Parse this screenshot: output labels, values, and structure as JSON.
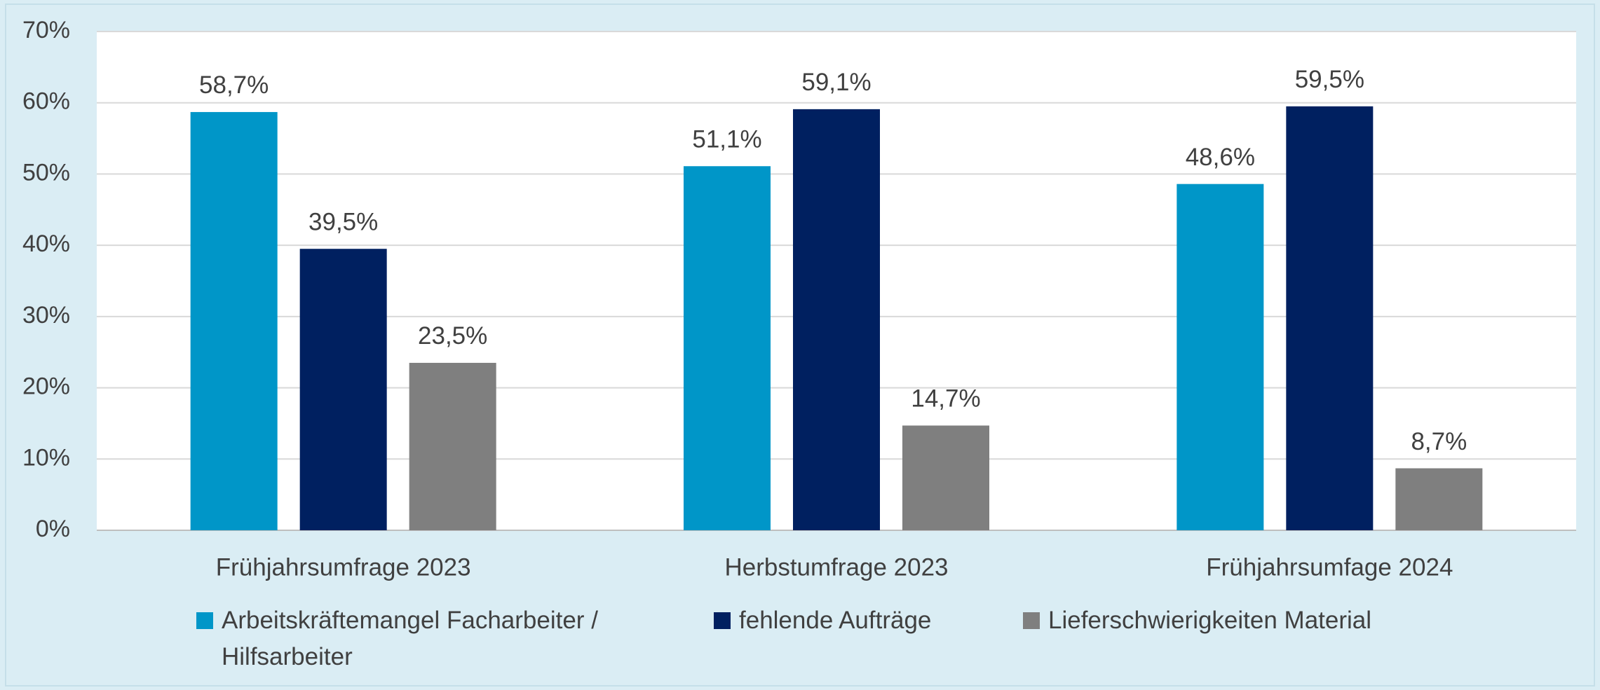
{
  "chart_data": {
    "type": "bar",
    "categories": [
      "Frühjahrsumfrage 2023",
      "Herbstumfrage 2023",
      "Frühjahrsumfage 2024"
    ],
    "series": [
      {
        "name": "Arbeitskräftemangel Facharbeiter / Hilfsarbeiter",
        "color": "#0096c8",
        "values": [
          58.7,
          51.1,
          48.6
        ],
        "value_labels": [
          "58,7%",
          "51,1%",
          "48,6%"
        ]
      },
      {
        "name": "fehlende Aufträge",
        "color": "#002060",
        "values": [
          39.5,
          59.1,
          59.5
        ],
        "value_labels": [
          "39,5%",
          "59,1%",
          "59,5%"
        ]
      },
      {
        "name": "Lieferschwierigkeiten Material",
        "color": "#7f7f7f",
        "values": [
          23.5,
          14.7,
          8.7
        ],
        "value_labels": [
          "23,5%",
          "14,7%",
          "8,7%"
        ]
      }
    ],
    "ylim": [
      0,
      70
    ],
    "yticks": [
      {
        "value": 0,
        "label": "0%"
      },
      {
        "value": 10,
        "label": "10%"
      },
      {
        "value": 20,
        "label": "20%"
      },
      {
        "value": 30,
        "label": "30%"
      },
      {
        "value": 40,
        "label": "40%"
      },
      {
        "value": 50,
        "label": "50%"
      },
      {
        "value": 60,
        "label": "60%"
      },
      {
        "value": 70,
        "label": "70%"
      }
    ],
    "grid": true,
    "legend": "bottom"
  }
}
